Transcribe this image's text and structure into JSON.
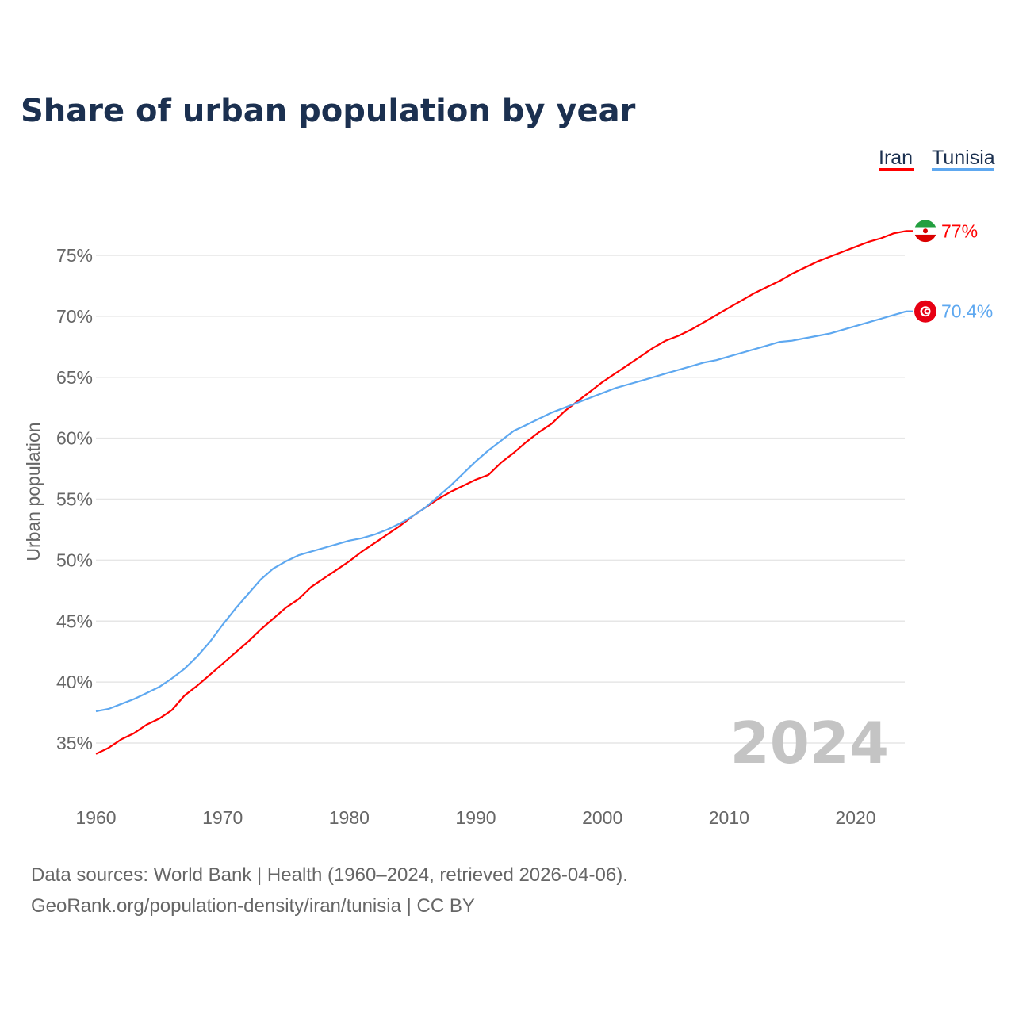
{
  "chart_data": {
    "type": "line",
    "title": "Share of urban population by year",
    "xlabel": "",
    "ylabel": "Urban population",
    "xlim": [
      1960,
      2024
    ],
    "ylim": [
      32,
      78
    ],
    "yticks": [
      35,
      40,
      45,
      50,
      55,
      60,
      65,
      70,
      75
    ],
    "ytick_labels": [
      "35%",
      "40%",
      "45%",
      "50%",
      "55%",
      "60%",
      "65%",
      "70%",
      "75%"
    ],
    "xticks": [
      1960,
      1970,
      1980,
      1990,
      2000,
      2010,
      2020
    ],
    "xtick_labels": [
      "1960",
      "1970",
      "1980",
      "1990",
      "2000",
      "2010",
      "2020"
    ],
    "grid": true,
    "legend_position": "top-right",
    "year_watermark": "2024",
    "x_start": 1960,
    "series": [
      {
        "name": "Iran",
        "color": "#ff0000",
        "end_label": "77%",
        "flag": "iran-flag",
        "values": [
          34.1,
          34.6,
          35.3,
          35.8,
          36.5,
          37.0,
          37.7,
          38.9,
          39.7,
          40.6,
          41.5,
          42.4,
          43.3,
          44.3,
          45.2,
          46.1,
          46.8,
          47.8,
          48.5,
          49.2,
          49.9,
          50.7,
          51.4,
          52.1,
          52.8,
          53.6,
          54.3,
          55.0,
          55.6,
          56.1,
          56.6,
          57.0,
          58.0,
          58.8,
          59.7,
          60.5,
          61.2,
          62.2,
          63.0,
          63.8,
          64.6,
          65.3,
          66.0,
          66.7,
          67.4,
          68.0,
          68.4,
          68.9,
          69.5,
          70.1,
          70.7,
          71.3,
          71.9,
          72.4,
          72.9,
          73.5,
          74.0,
          74.5,
          74.9,
          75.3,
          75.7,
          76.1,
          76.4,
          76.8,
          77.0
        ]
      },
      {
        "name": "Tunisia",
        "color": "#5ea8f0",
        "end_label": "70.4%",
        "flag": "tunisia-flag",
        "values": [
          37.6,
          37.8,
          38.2,
          38.6,
          39.1,
          39.6,
          40.3,
          41.1,
          42.1,
          43.3,
          44.7,
          46.0,
          47.2,
          48.4,
          49.3,
          49.9,
          50.4,
          50.7,
          51.0,
          51.3,
          51.6,
          51.8,
          52.1,
          52.5,
          53.0,
          53.6,
          54.3,
          55.2,
          56.1,
          57.1,
          58.1,
          59.0,
          59.8,
          60.6,
          61.1,
          61.6,
          62.1,
          62.5,
          62.9,
          63.3,
          63.7,
          64.1,
          64.4,
          64.7,
          65.0,
          65.3,
          65.6,
          65.9,
          66.2,
          66.4,
          66.7,
          67.0,
          67.3,
          67.6,
          67.9,
          68.0,
          68.2,
          68.4,
          68.6,
          68.9,
          69.2,
          69.5,
          69.8,
          70.1,
          70.4
        ]
      }
    ]
  },
  "footer": {
    "line1": "Data sources: World Bank | Health (1960–2024, retrieved 2026-04-06).",
    "line2": "GeoRank.org/population-density/iran/tunisia | CC BY"
  }
}
